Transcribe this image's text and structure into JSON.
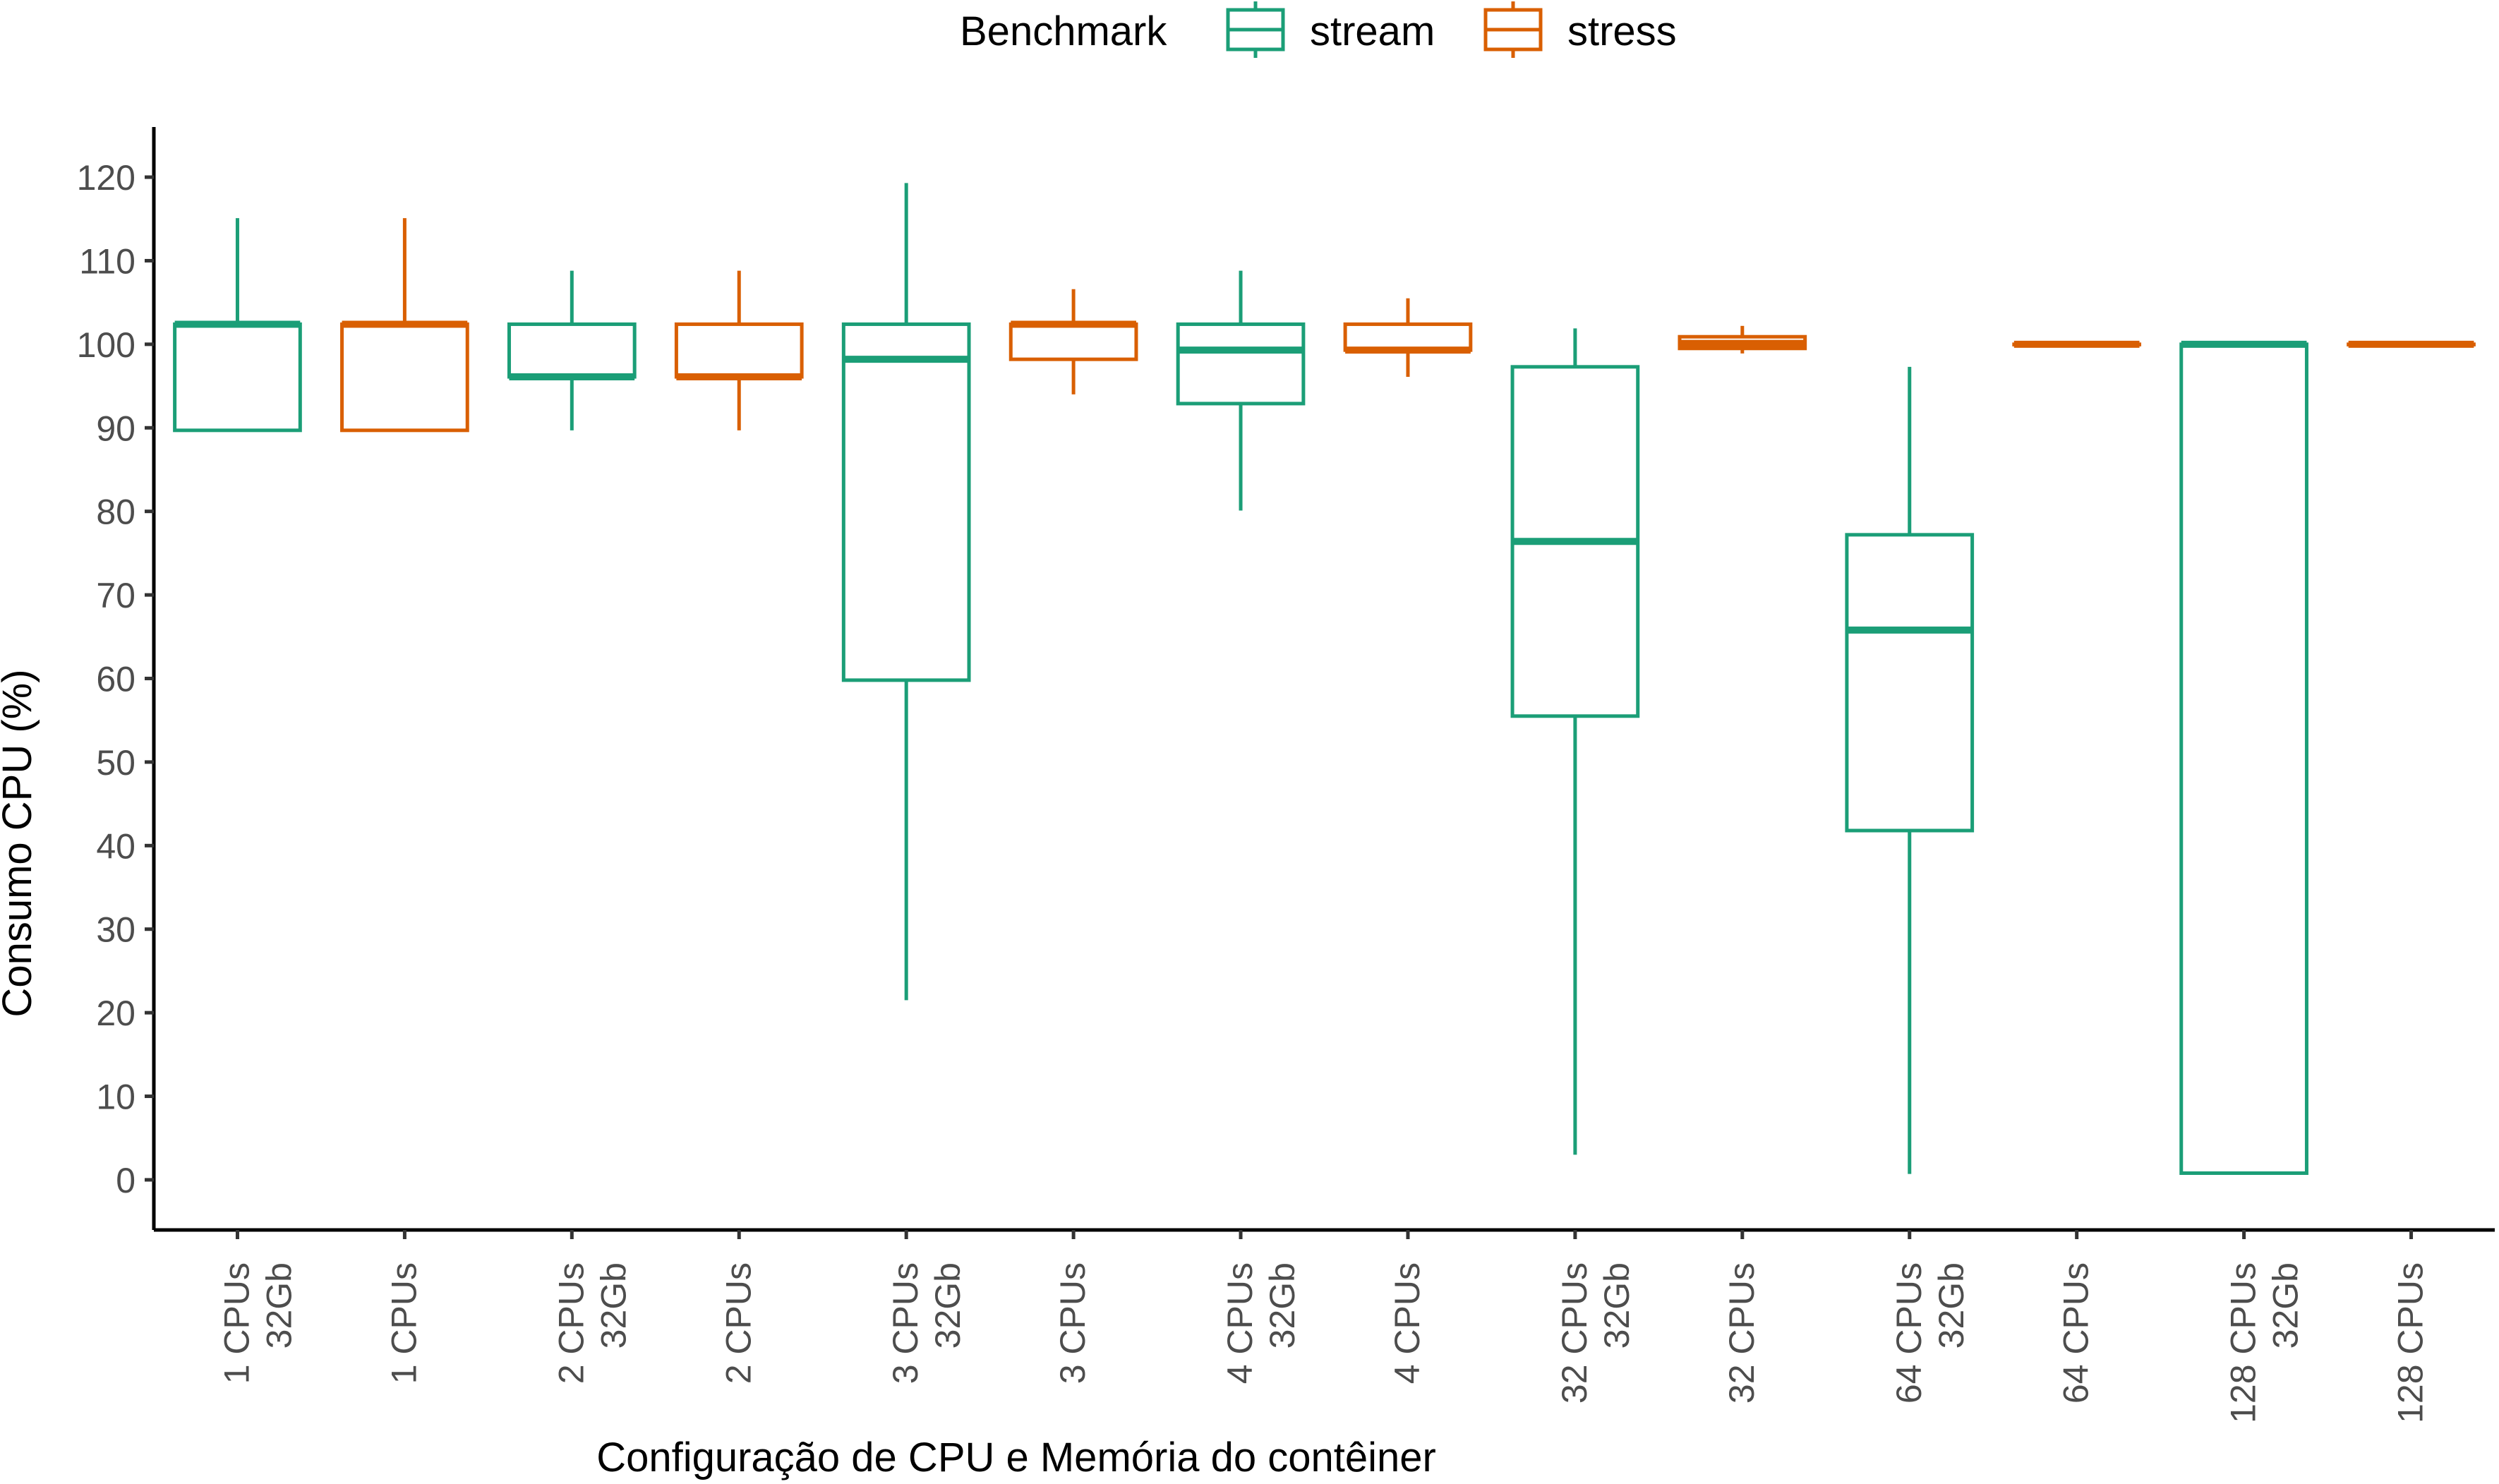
{
  "chart_data": {
    "type": "boxplot",
    "xlabel": "Configuração de CPU e Memória do contêiner",
    "ylabel": "Consumo CPU (%)",
    "ylim": [
      -6,
      126
    ],
    "yticks": [
      0,
      10,
      20,
      30,
      40,
      50,
      60,
      70,
      80,
      90,
      100,
      110,
      120
    ],
    "grid": false,
    "legend": {
      "title": "Benchmark",
      "position": "top",
      "entries": [
        {
          "name": "stream",
          "color": "#1b9e77"
        },
        {
          "name": "stress",
          "color": "#d95f02"
        }
      ]
    },
    "categories": [
      {
        "lines": [
          "1 CPUs",
          "32Gb"
        ],
        "series": "stream"
      },
      {
        "lines": [
          "1 CPUs"
        ],
        "series": "stress"
      },
      {
        "lines": [
          "2 CPUs",
          "32Gb"
        ],
        "series": "stream"
      },
      {
        "lines": [
          "2 CPUs"
        ],
        "series": "stress"
      },
      {
        "lines": [
          "3 CPUs",
          "32Gb"
        ],
        "series": "stream"
      },
      {
        "lines": [
          "3 CPUs"
        ],
        "series": "stress"
      },
      {
        "lines": [
          "4 CPUs",
          "32Gb"
        ],
        "series": "stream"
      },
      {
        "lines": [
          "4 CPUs"
        ],
        "series": "stress"
      },
      {
        "lines": [
          "32 CPUs",
          "32Gb"
        ],
        "series": "stream"
      },
      {
        "lines": [
          "32 CPUs"
        ],
        "series": "stress"
      },
      {
        "lines": [
          "64 CPUs",
          "32Gb"
        ],
        "series": "stream"
      },
      {
        "lines": [
          "64 CPUs"
        ],
        "series": "stress"
      },
      {
        "lines": [
          "128 CPUs",
          "32Gb"
        ],
        "series": "stream"
      },
      {
        "lines": [
          "128 CPUs"
        ],
        "series": "stress"
      }
    ],
    "boxes": [
      {
        "min": 89.7,
        "q1": 89.7,
        "median": 102.4,
        "q3": 102.4,
        "max": 115.1
      },
      {
        "min": 89.7,
        "q1": 89.7,
        "median": 102.4,
        "q3": 102.4,
        "max": 115.1
      },
      {
        "min": 89.7,
        "q1": 96.1,
        "median": 96.1,
        "q3": 102.4,
        "max": 108.8
      },
      {
        "min": 89.7,
        "q1": 96.1,
        "median": 96.1,
        "q3": 102.4,
        "max": 108.8
      },
      {
        "min": 21.5,
        "q1": 59.8,
        "median": 98.2,
        "q3": 102.4,
        "max": 119.3
      },
      {
        "min": 94.0,
        "q1": 98.2,
        "median": 102.4,
        "q3": 102.4,
        "max": 106.6
      },
      {
        "min": 80.1,
        "q1": 92.9,
        "median": 99.3,
        "q3": 102.4,
        "max": 108.8
      },
      {
        "min": 96.1,
        "q1": 99.3,
        "median": 99.3,
        "q3": 102.4,
        "max": 105.5
      },
      {
        "min": 3.0,
        "q1": 55.5,
        "median": 76.4,
        "q3": 97.3,
        "max": 101.9
      },
      {
        "min": 98.9,
        "q1": 99.5,
        "median": 100.1,
        "q3": 100.9,
        "max": 102.2
      },
      {
        "min": 0.7,
        "q1": 41.8,
        "median": 65.8,
        "q3": 77.2,
        "max": 97.3
      },
      {
        "min": 100.0,
        "q1": 100.0,
        "median": 100.0,
        "q3": 100.0,
        "max": 100.0
      },
      {
        "min": 0.8,
        "q1": 0.8,
        "median": 100.0,
        "q3": 100.0,
        "max": 100.0
      },
      {
        "min": 100.0,
        "q1": 100.0,
        "median": 100.0,
        "q3": 100.0,
        "max": 100.0
      }
    ]
  }
}
